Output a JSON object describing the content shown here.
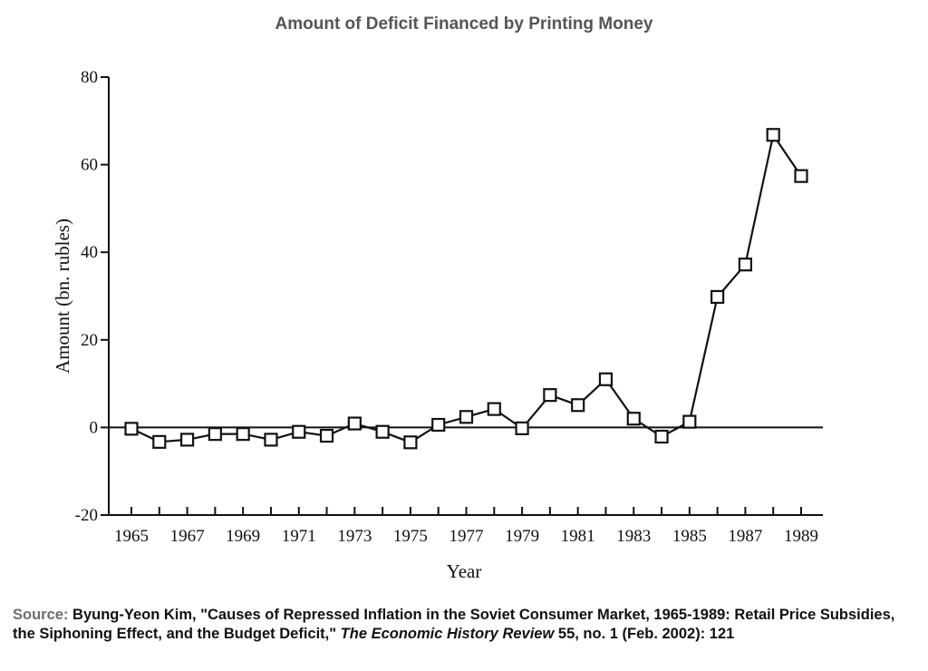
{
  "figure": {
    "title": "Amount of Deficit Financed by Printing Money"
  },
  "chart_data": {
    "type": "line",
    "title": "Amount of Deficit Financed by Printing Money",
    "xlabel": "Year",
    "ylabel": "Amount (bn. rubles)",
    "xlim": [
      1965,
      1989
    ],
    "ylim": [
      -20,
      80
    ],
    "xticks": [
      1965,
      1966,
      1967,
      1968,
      1969,
      1970,
      1971,
      1972,
      1973,
      1974,
      1975,
      1976,
      1977,
      1978,
      1979,
      1980,
      1981,
      1982,
      1983,
      1984,
      1985,
      1986,
      1987,
      1988,
      1989
    ],
    "xtick_labels": [
      "1965",
      "1967",
      "1969",
      "1971",
      "1973",
      "1975",
      "1977",
      "1979",
      "1981",
      "1983",
      "1985",
      "1987",
      "1989"
    ],
    "xtick_label_values": [
      1965,
      1967,
      1969,
      1971,
      1973,
      1975,
      1977,
      1979,
      1981,
      1983,
      1985,
      1987,
      1989
    ],
    "yticks": [
      -20,
      0,
      20,
      40,
      60,
      80
    ],
    "ytick_labels": [
      "-20",
      "0",
      "20",
      "40",
      "60",
      "80"
    ],
    "marker": "open-square",
    "zero_line": true,
    "grid": false,
    "series": [
      {
        "x": [
          1965,
          1966,
          1967,
          1968,
          1969,
          1970,
          1971,
          1972,
          1973,
          1974,
          1975,
          1976,
          1977,
          1978,
          1979,
          1980,
          1981,
          1982,
          1983,
          1984,
          1985,
          1986,
          1987,
          1988,
          1989
        ],
        "values": [
          -0.3,
          -3.3,
          -2.8,
          -1.5,
          -1.5,
          -2.8,
          -1.0,
          -1.9,
          0.9,
          -1.0,
          -3.4,
          0.6,
          2.4,
          4.2,
          -0.2,
          7.4,
          5.1,
          11.0,
          2.0,
          -2.1,
          1.3,
          29.8,
          37.2,
          66.8,
          57.4
        ]
      }
    ]
  },
  "source": {
    "label": "Source:",
    "text_before": " Byung-Yeon Kim, \"Causes of Repressed Inflation in the Soviet Consumer Market, 1965-1989: Retail Price Subsidies, the Siphoning Effect, and the Budget Deficit,\" ",
    "journal": "The Economic History Review",
    "text_after": " 55, no. 1 (Feb. 2002): 121"
  }
}
